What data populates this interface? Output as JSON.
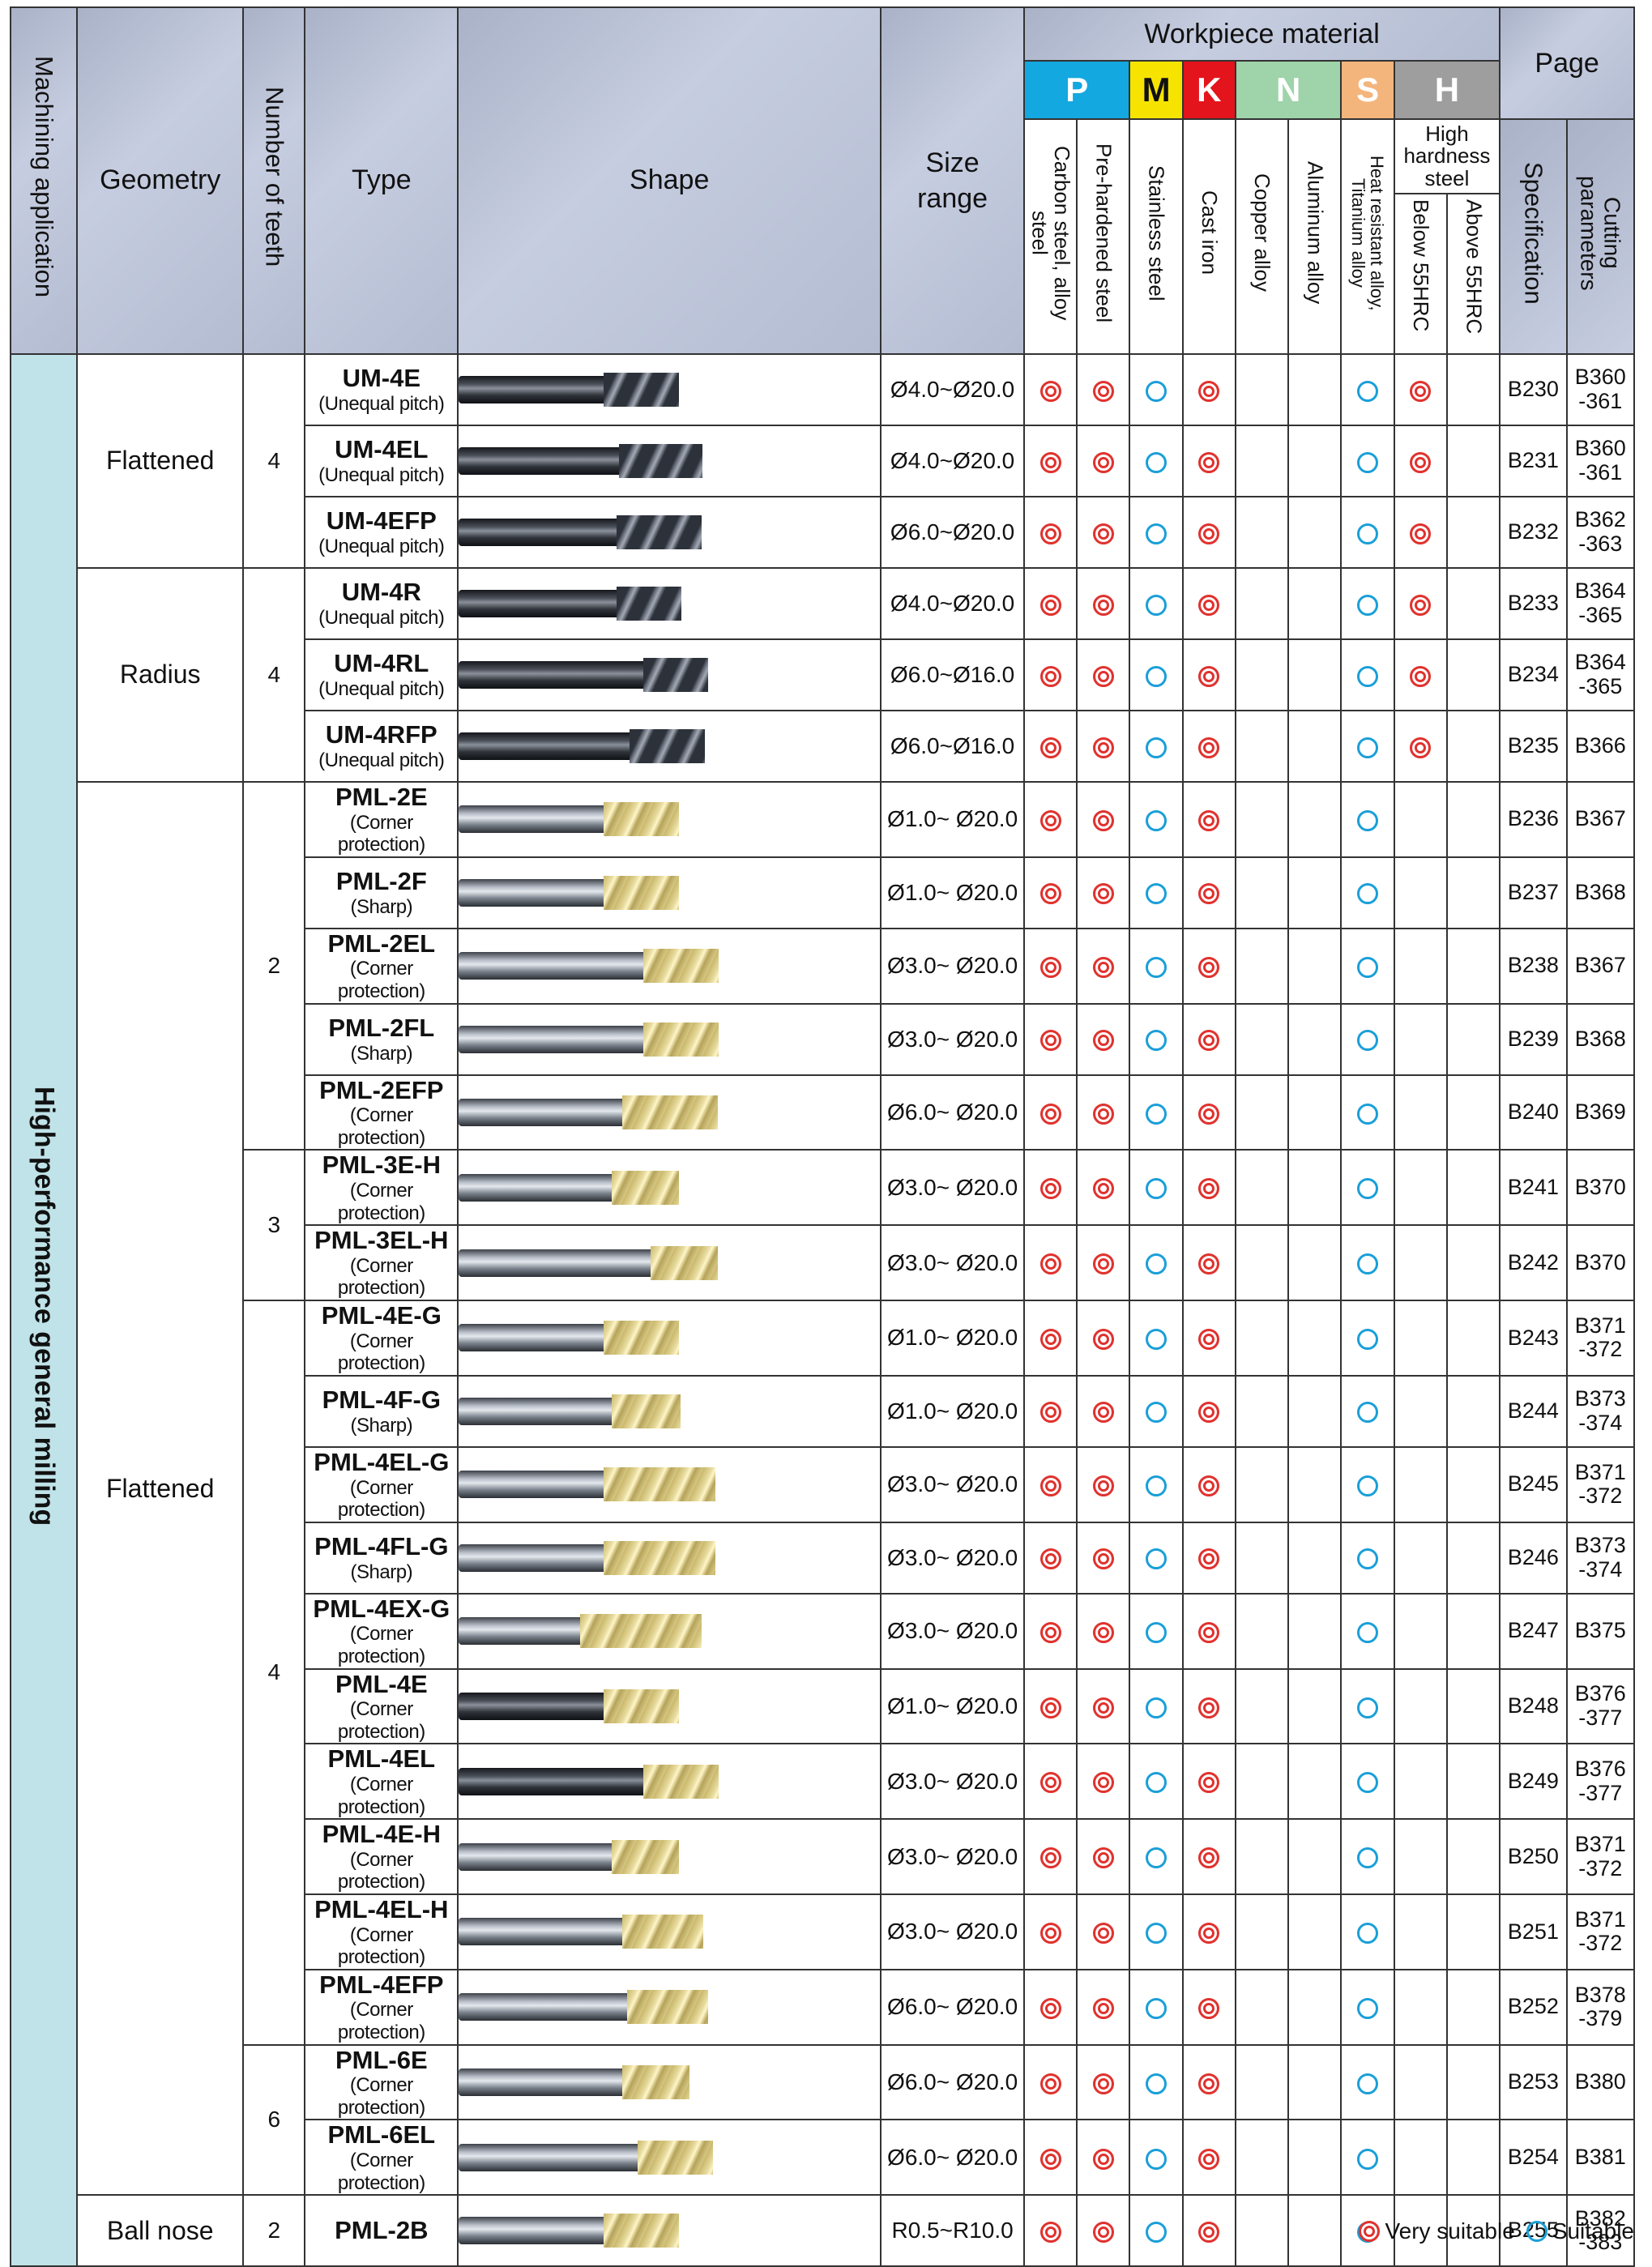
{
  "header": {
    "machining_application": "Machining application",
    "geometry": "Geometry",
    "number_of_teeth": "Number of teeth",
    "type": "Type",
    "shape": "Shape",
    "size_range": "Size range",
    "workpiece_material": "Workpiece material",
    "page": "Page",
    "materials": [
      {
        "letter": "P",
        "color": "#13a8e0"
      },
      {
        "letter": "M",
        "color": "#f6e400"
      },
      {
        "letter": "K",
        "color": "#e3141b"
      },
      {
        "letter": "N",
        "color": "#9fd3a9"
      },
      {
        "letter": "S",
        "color": "#f4b57c"
      },
      {
        "letter": "H",
        "color": "#9e9e9e"
      }
    ],
    "columns": {
      "carbon_steel": "Carbon steel, alloy steel",
      "pre_hardened": "Pre-hardened steel",
      "stainless": "Stainless steel",
      "cast_iron": "Cast iron",
      "copper": "Copper alloy",
      "aluminum": "Aluminum alloy",
      "heat_resistant": "Heat resistant alloy, Titanium alloy",
      "high_hardness": "High hardness steel",
      "below_55": "Below 55HRC",
      "above_55": "Above 55HRC",
      "specification": "Specification",
      "cutting_parameters": "Cutting parameters"
    }
  },
  "application": "High-performance general milling",
  "groups": {
    "g1": {
      "geometry": "Flattened",
      "teeth": "4"
    },
    "g2": {
      "geometry": "Radius",
      "teeth": "4"
    },
    "g3": {
      "geometry": "Flattened",
      "teeth2": "2",
      "teeth3": "3",
      "teeth4": "4",
      "teeth6": "6"
    },
    "g4": {
      "geometry": "Ball nose",
      "teeth": "2"
    }
  },
  "rows": [
    {
      "name": "UM-4E",
      "sub": "(Unequal pitch)",
      "size": "Ø4.0~Ø20.0",
      "marks": [
        "vs",
        "vs",
        "s",
        "vs",
        "",
        "",
        "s",
        "vs",
        ""
      ],
      "spec": "B230",
      "cut": "B360\n-361",
      "tool": {
        "style": "dark",
        "shank": 0.55,
        "flute": 0.37,
        "gold": false
      }
    },
    {
      "name": "UM-4EL",
      "sub": "(Unequal pitch)",
      "size": "Ø4.0~Ø20.0",
      "marks": [
        "vs",
        "vs",
        "s",
        "vs",
        "",
        "",
        "s",
        "vs",
        ""
      ],
      "spec": "B231",
      "cut": "B360\n-361",
      "tool": {
        "style": "dark",
        "shank": 0.61,
        "flute": 0.41,
        "gold": false
      }
    },
    {
      "name": "UM-4EFP",
      "sub": "(Unequal pitch)",
      "size": "Ø6.0~Ø20.0",
      "marks": [
        "vs",
        "vs",
        "s",
        "vs",
        "",
        "",
        "s",
        "vs",
        ""
      ],
      "spec": "B232",
      "cut": "B362\n-363",
      "tool": {
        "style": "dark",
        "shank": 0.6,
        "flute": 0.42,
        "gold": false
      }
    },
    {
      "name": "UM-4R",
      "sub": "(Unequal pitch)",
      "size": "Ø4.0~Ø20.0",
      "marks": [
        "vs",
        "vs",
        "s",
        "vs",
        "",
        "",
        "s",
        "vs",
        ""
      ],
      "spec": "B233",
      "cut": "B364\n-365",
      "tool": {
        "style": "dark",
        "shank": 0.6,
        "flute": 0.32,
        "gold": false
      }
    },
    {
      "name": "UM-4RL",
      "sub": "(Unequal pitch)",
      "size": "Ø6.0~Ø16.0",
      "marks": [
        "vs",
        "vs",
        "s",
        "vs",
        "",
        "",
        "s",
        "vs",
        ""
      ],
      "spec": "B234",
      "cut": "B364\n-365",
      "tool": {
        "style": "dark",
        "shank": 0.7,
        "flute": 0.32,
        "gold": false
      }
    },
    {
      "name": "UM-4RFP",
      "sub": "(Unequal pitch)",
      "size": "Ø6.0~Ø16.0",
      "marks": [
        "vs",
        "vs",
        "s",
        "vs",
        "",
        "",
        "s",
        "vs",
        ""
      ],
      "spec": "B235",
      "cut": "B366",
      "tool": {
        "style": "dark",
        "shank": 0.65,
        "flute": 0.37,
        "gold": false
      }
    },
    {
      "name": "PML-2E",
      "sub": "(Corner protection)",
      "size": "Ø1.0~ Ø20.0",
      "marks": [
        "vs",
        "vs",
        "s",
        "vs",
        "",
        "",
        "s",
        "",
        ""
      ],
      "spec": "B236",
      "cut": "B367",
      "tool": {
        "style": "light",
        "shank": 0.55,
        "flute": 0.37,
        "gold": true
      }
    },
    {
      "name": "PML-2F",
      "sub": "(Sharp)",
      "size": "Ø1.0~ Ø20.0",
      "marks": [
        "vs",
        "vs",
        "s",
        "vs",
        "",
        "",
        "s",
        "",
        ""
      ],
      "spec": "B237",
      "cut": "B368",
      "tool": {
        "style": "light",
        "shank": 0.55,
        "flute": 0.37,
        "gold": true
      }
    },
    {
      "name": "PML-2EL",
      "sub": "(Corner protection)",
      "size": "Ø3.0~ Ø20.0",
      "marks": [
        "vs",
        "vs",
        "s",
        "vs",
        "",
        "",
        "s",
        "",
        ""
      ],
      "spec": "B238",
      "cut": "B367",
      "tool": {
        "style": "light",
        "shank": 0.7,
        "flute": 0.37,
        "gold": true
      }
    },
    {
      "name": "PML-2FL",
      "sub": "(Sharp)",
      "size": "Ø3.0~ Ø20.0",
      "marks": [
        "vs",
        "vs",
        "s",
        "vs",
        "",
        "",
        "s",
        "",
        ""
      ],
      "spec": "B239",
      "cut": "B368",
      "tool": {
        "style": "light",
        "shank": 0.7,
        "flute": 0.37,
        "gold": true
      }
    },
    {
      "name": "PML-2EFP",
      "sub": "(Corner protection)",
      "size": "Ø6.0~ Ø20.0",
      "marks": [
        "vs",
        "vs",
        "s",
        "vs",
        "",
        "",
        "s",
        "",
        ""
      ],
      "spec": "B240",
      "cut": "B369",
      "tool": {
        "style": "light",
        "shank": 0.62,
        "flute": 0.47,
        "gold": true
      }
    },
    {
      "name": "PML-3E-H",
      "sub": "(Corner protection)",
      "size": "Ø3.0~ Ø20.0",
      "marks": [
        "vs",
        "vs",
        "s",
        "vs",
        "",
        "",
        "s",
        "",
        ""
      ],
      "spec": "B241",
      "cut": "B370",
      "tool": {
        "style": "light",
        "shank": 0.58,
        "flute": 0.33,
        "gold": true
      }
    },
    {
      "name": "PML-3EL-H",
      "sub": "(Corner protection)",
      "size": "Ø3.0~ Ø20.0",
      "marks": [
        "vs",
        "vs",
        "s",
        "vs",
        "",
        "",
        "s",
        "",
        ""
      ],
      "spec": "B242",
      "cut": "B370",
      "tool": {
        "style": "light",
        "shank": 0.73,
        "flute": 0.33,
        "gold": true
      }
    },
    {
      "name": "PML-4E-G",
      "sub": "(Corner protection)",
      "size": "Ø1.0~ Ø20.0",
      "marks": [
        "vs",
        "vs",
        "s",
        "vs",
        "",
        "",
        "s",
        "",
        ""
      ],
      "spec": "B243",
      "cut": "B371\n-372",
      "tool": {
        "style": "light",
        "shank": 0.55,
        "flute": 0.37,
        "gold": true
      }
    },
    {
      "name": "PML-4F-G",
      "sub": "(Sharp)",
      "size": "Ø1.0~ Ø20.0",
      "marks": [
        "vs",
        "vs",
        "s",
        "vs",
        "",
        "",
        "s",
        "",
        ""
      ],
      "spec": "B244",
      "cut": "B373\n-374",
      "tool": {
        "style": "light",
        "shank": 0.58,
        "flute": 0.34,
        "gold": true
      }
    },
    {
      "name": "PML-4EL-G",
      "sub": "(Corner protection)",
      "size": "Ø3.0~ Ø20.0",
      "marks": [
        "vs",
        "vs",
        "s",
        "vs",
        "",
        "",
        "s",
        "",
        ""
      ],
      "spec": "B245",
      "cut": "B371\n-372",
      "tool": {
        "style": "light",
        "shank": 0.55,
        "flute": 0.55,
        "gold": true
      }
    },
    {
      "name": "PML-4FL-G",
      "sub": "(Sharp)",
      "size": "Ø3.0~ Ø20.0",
      "marks": [
        "vs",
        "vs",
        "s",
        "vs",
        "",
        "",
        "s",
        "",
        ""
      ],
      "spec": "B246",
      "cut": "B373\n-374",
      "tool": {
        "style": "light",
        "shank": 0.55,
        "flute": 0.55,
        "gold": true
      }
    },
    {
      "name": "PML-4EX-G",
      "sub": "(Corner protection)",
      "size": "Ø3.0~ Ø20.0",
      "marks": [
        "vs",
        "vs",
        "s",
        "vs",
        "",
        "",
        "s",
        "",
        ""
      ],
      "spec": "B247",
      "cut": "B375",
      "tool": {
        "style": "light",
        "shank": 0.46,
        "flute": 0.6,
        "gold": true
      }
    },
    {
      "name": "PML-4E",
      "sub": "(Corner protection)",
      "size": "Ø1.0~ Ø20.0",
      "marks": [
        "vs",
        "vs",
        "s",
        "vs",
        "",
        "",
        "s",
        "",
        ""
      ],
      "spec": "B248",
      "cut": "B376\n-377",
      "tool": {
        "style": "dark",
        "shank": 0.55,
        "flute": 0.37,
        "gold": true
      }
    },
    {
      "name": "PML-4EL",
      "sub": "(Corner protection)",
      "size": "Ø3.0~ Ø20.0",
      "marks": [
        "vs",
        "vs",
        "s",
        "vs",
        "",
        "",
        "s",
        "",
        ""
      ],
      "spec": "B249",
      "cut": "B376\n-377",
      "tool": {
        "style": "dark",
        "shank": 0.7,
        "flute": 0.37,
        "gold": true
      }
    },
    {
      "name": "PML-4E-H",
      "sub": "(Corner protection)",
      "size": "Ø3.0~ Ø20.0",
      "marks": [
        "vs",
        "vs",
        "s",
        "vs",
        "",
        "",
        "s",
        "",
        ""
      ],
      "spec": "B250",
      "cut": "B371\n-372",
      "tool": {
        "style": "light",
        "shank": 0.58,
        "flute": 0.33,
        "gold": true
      }
    },
    {
      "name": "PML-4EL-H",
      "sub": "(Corner protection)",
      "size": "Ø3.0~ Ø20.0",
      "marks": [
        "vs",
        "vs",
        "s",
        "vs",
        "",
        "",
        "s",
        "",
        ""
      ],
      "spec": "B251",
      "cut": "B371\n-372",
      "tool": {
        "style": "light",
        "shank": 0.62,
        "flute": 0.4,
        "gold": true
      }
    },
    {
      "name": "PML-4EFP",
      "sub": "(Corner protection)",
      "size": "Ø6.0~ Ø20.0",
      "marks": [
        "vs",
        "vs",
        "s",
        "vs",
        "",
        "",
        "s",
        "",
        ""
      ],
      "spec": "B252",
      "cut": "B378\n-379",
      "tool": {
        "style": "light",
        "shank": 0.64,
        "flute": 0.4,
        "gold": true
      }
    },
    {
      "name": "PML-6E",
      "sub": "(Corner protection)",
      "size": "Ø6.0~ Ø20.0",
      "marks": [
        "vs",
        "vs",
        "s",
        "vs",
        "",
        "",
        "s",
        "",
        ""
      ],
      "spec": "B253",
      "cut": "B380",
      "tool": {
        "style": "light",
        "shank": 0.62,
        "flute": 0.33,
        "gold": true
      }
    },
    {
      "name": "PML-6EL",
      "sub": "(Corner protection)",
      "size": "Ø6.0~ Ø20.0",
      "marks": [
        "vs",
        "vs",
        "s",
        "vs",
        "",
        "",
        "s",
        "",
        ""
      ],
      "spec": "B254",
      "cut": "B381",
      "tool": {
        "style": "light",
        "shank": 0.68,
        "flute": 0.37,
        "gold": true
      }
    },
    {
      "name": "PML-2B",
      "sub": "",
      "size": "R0.5~R10.0",
      "marks": [
        "vs",
        "vs",
        "s",
        "vs",
        "",
        "",
        "s",
        "",
        ""
      ],
      "spec": "B255",
      "cut": "B382\n-383",
      "tool": {
        "style": "light",
        "shank": 0.55,
        "flute": 0.37,
        "gold": true
      }
    }
  ],
  "legend": {
    "very_suitable": "Very suitable",
    "suitable": "Suitable",
    "very_color": "#e0322e",
    "suitable_color": "#1a9fd8"
  }
}
